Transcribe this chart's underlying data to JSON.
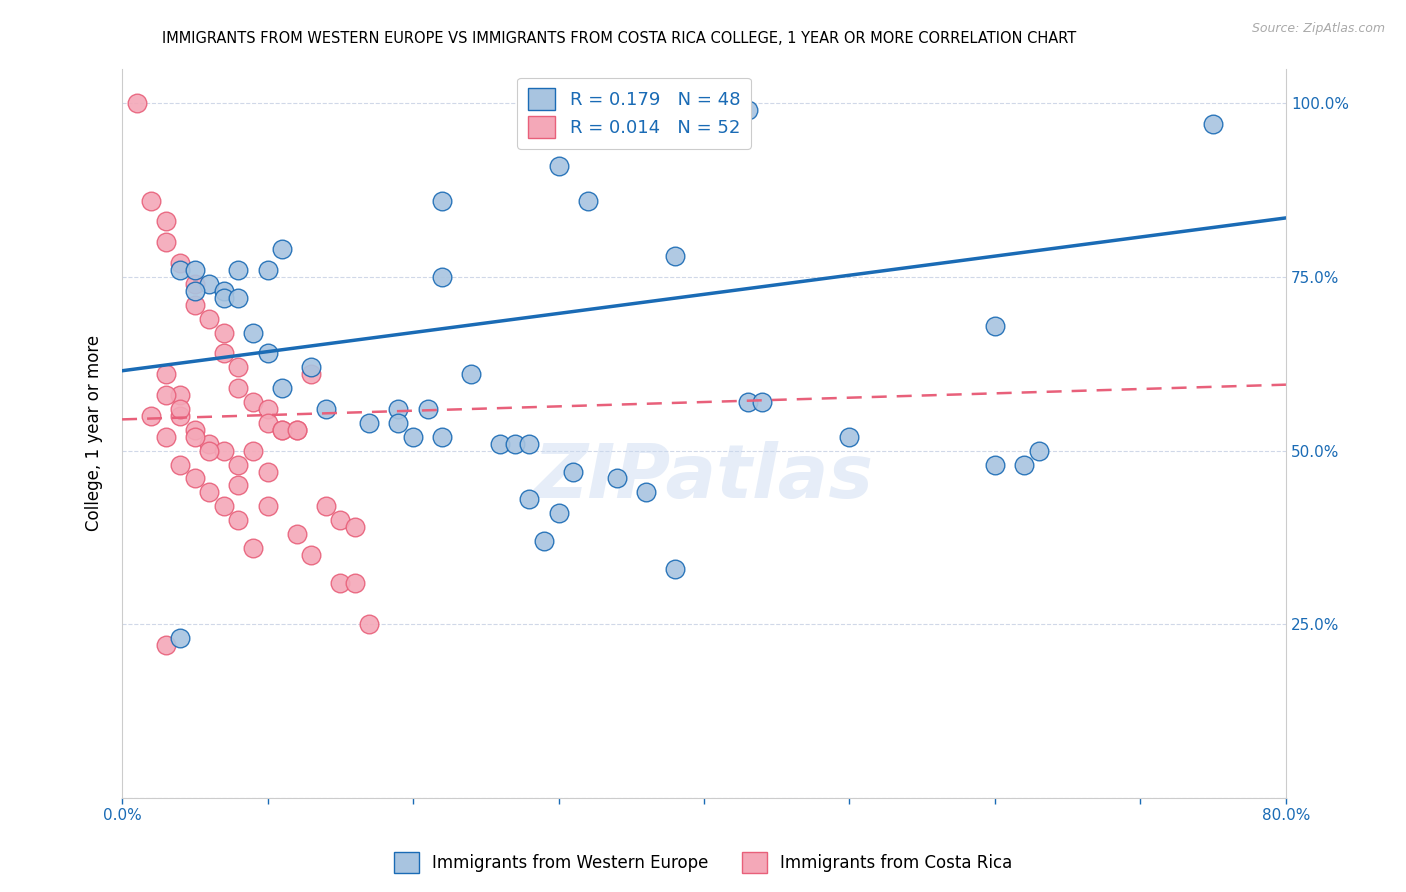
{
  "title": "IMMIGRANTS FROM WESTERN EUROPE VS IMMIGRANTS FROM COSTA RICA COLLEGE, 1 YEAR OR MORE CORRELATION CHART",
  "source": "Source: ZipAtlas.com",
  "ylabel": "College, 1 year or more",
  "xlim": [
    0.0,
    0.8
  ],
  "ylim": [
    0.0,
    1.05
  ],
  "xticks": [
    0.0,
    0.1,
    0.2,
    0.3,
    0.4,
    0.5,
    0.6,
    0.7,
    0.8
  ],
  "xticklabels": [
    "0.0%",
    "",
    "",
    "",
    "",
    "",
    "",
    "",
    "80.0%"
  ],
  "ytick_positions": [
    0.0,
    0.25,
    0.5,
    0.75,
    1.0
  ],
  "yticklabels_right": [
    "",
    "25.0%",
    "50.0%",
    "75.0%",
    "100.0%"
  ],
  "blue_R": 0.179,
  "blue_N": 48,
  "pink_R": 0.014,
  "pink_N": 52,
  "blue_color": "#a8c4e0",
  "pink_color": "#f4a8b8",
  "blue_line_color": "#1a6bb5",
  "pink_line_color": "#e8607a",
  "watermark": "ZIPatlas",
  "blue_scatter_x": [
    0.42,
    0.43,
    0.3,
    0.22,
    0.32,
    0.38,
    0.6,
    0.75,
    0.04,
    0.05,
    0.06,
    0.07,
    0.08,
    0.1,
    0.11,
    0.05,
    0.07,
    0.08,
    0.09,
    0.1,
    0.11,
    0.13,
    0.14,
    0.22,
    0.24,
    0.19,
    0.21,
    0.17,
    0.19,
    0.2,
    0.22,
    0.26,
    0.27,
    0.28,
    0.34,
    0.36,
    0.38,
    0.43,
    0.44,
    0.5,
    0.6,
    0.62,
    0.63,
    0.28,
    0.3,
    0.31,
    0.29,
    0.04
  ],
  "blue_scatter_y": [
    1.0,
    0.99,
    0.91,
    0.86,
    0.86,
    0.78,
    0.68,
    0.97,
    0.76,
    0.76,
    0.74,
    0.73,
    0.76,
    0.76,
    0.79,
    0.73,
    0.72,
    0.72,
    0.67,
    0.64,
    0.59,
    0.62,
    0.56,
    0.75,
    0.61,
    0.56,
    0.56,
    0.54,
    0.54,
    0.52,
    0.52,
    0.51,
    0.51,
    0.51,
    0.46,
    0.44,
    0.33,
    0.57,
    0.57,
    0.52,
    0.48,
    0.48,
    0.5,
    0.43,
    0.41,
    0.47,
    0.37,
    0.23
  ],
  "pink_scatter_x": [
    0.01,
    0.02,
    0.03,
    0.03,
    0.04,
    0.05,
    0.05,
    0.06,
    0.07,
    0.07,
    0.08,
    0.08,
    0.09,
    0.1,
    0.1,
    0.11,
    0.12,
    0.03,
    0.04,
    0.04,
    0.05,
    0.06,
    0.07,
    0.08,
    0.09,
    0.1,
    0.11,
    0.12,
    0.13,
    0.14,
    0.15,
    0.16,
    0.02,
    0.03,
    0.04,
    0.05,
    0.06,
    0.07,
    0.08,
    0.09,
    0.03,
    0.04,
    0.05,
    0.06,
    0.08,
    0.1,
    0.12,
    0.13,
    0.15,
    0.16,
    0.17,
    0.03
  ],
  "pink_scatter_y": [
    1.0,
    0.86,
    0.83,
    0.8,
    0.77,
    0.74,
    0.71,
    0.69,
    0.67,
    0.64,
    0.62,
    0.59,
    0.57,
    0.56,
    0.54,
    0.53,
    0.53,
    0.61,
    0.58,
    0.55,
    0.53,
    0.51,
    0.5,
    0.48,
    0.5,
    0.47,
    0.53,
    0.53,
    0.61,
    0.42,
    0.4,
    0.39,
    0.55,
    0.52,
    0.48,
    0.46,
    0.44,
    0.42,
    0.4,
    0.36,
    0.58,
    0.56,
    0.52,
    0.5,
    0.45,
    0.42,
    0.38,
    0.35,
    0.31,
    0.31,
    0.25,
    0.22
  ],
  "blue_line_x": [
    0.0,
    0.8
  ],
  "blue_line_y": [
    0.615,
    0.835
  ],
  "pink_line_x": [
    0.0,
    0.8
  ],
  "pink_line_y": [
    0.545,
    0.595
  ]
}
